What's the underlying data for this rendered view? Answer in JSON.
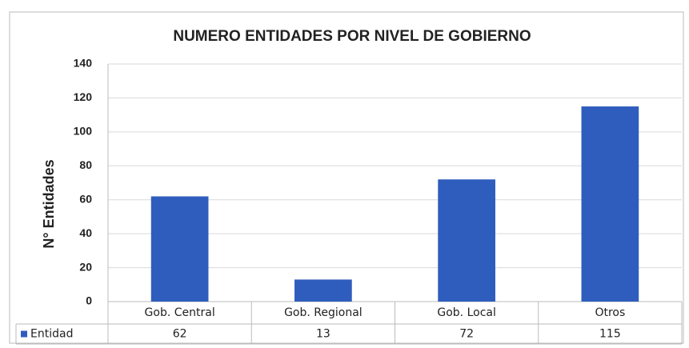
{
  "chart_data": {
    "type": "bar",
    "title": "NUMERO ENTIDADES POR NIVEL DE GOBIERNO",
    "y_label": "N° Entidades",
    "categories": [
      "Gob. Central",
      "Gob. Regional",
      "Gob. Local",
      "Otros"
    ],
    "series": [
      {
        "name": "Entidad",
        "color": "#2f5dbd",
        "values": [
          62,
          13,
          72,
          115
        ]
      }
    ],
    "ylim": [
      0,
      140
    ],
    "yticks": [
      0,
      20,
      40,
      60,
      80,
      100,
      120,
      140
    ],
    "grid": true,
    "data_table": true
  }
}
